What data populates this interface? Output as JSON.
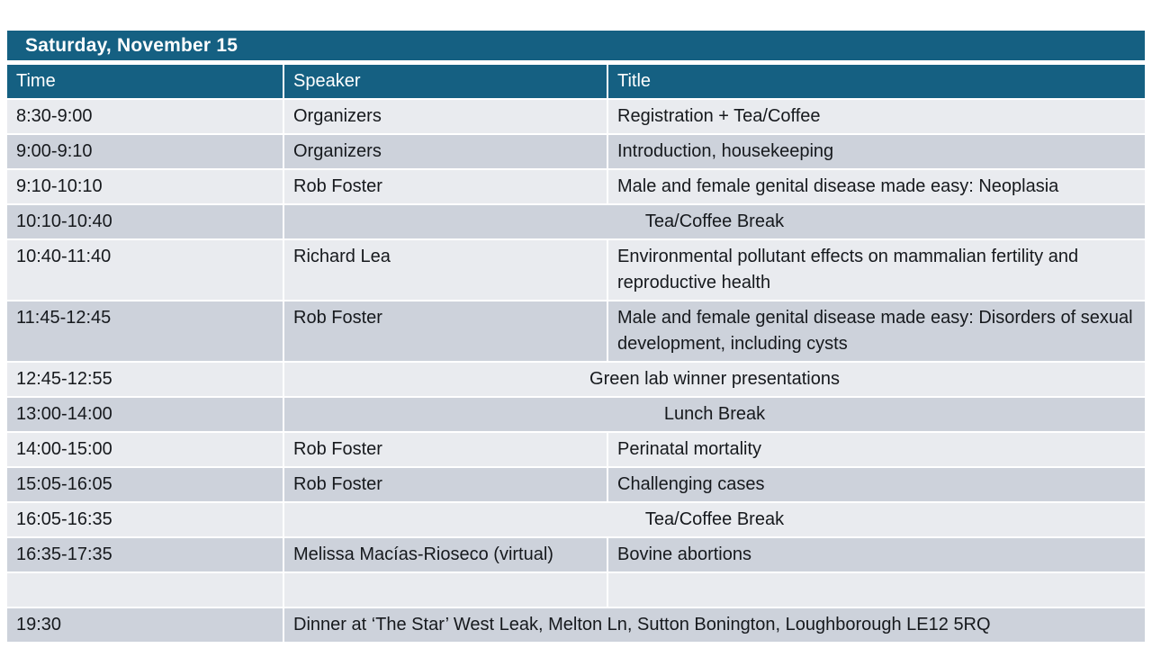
{
  "colors": {
    "accent_teal": "#156082",
    "band_light": "#E9EBEF",
    "band_dark": "#CDD2DB",
    "border_white": "#FFFFFF",
    "header_text": "#FFFFFF",
    "body_text": "#16191D"
  },
  "table": {
    "title": "Saturday, November 15",
    "columns": [
      {
        "label": "Time"
      },
      {
        "label": "Speaker"
      },
      {
        "label": "Title"
      }
    ],
    "rows": [
      {
        "time": "8:30-9:00",
        "speaker": "Organizers",
        "title": "Registration + Tea/Coffee"
      },
      {
        "time": "9:00-9:10",
        "speaker": "Organizers",
        "title": "Introduction, housekeeping"
      },
      {
        "time": "9:10-10:10",
        "speaker": "Rob Foster",
        "title": "Male and female genital disease made easy: Neoplasia"
      },
      {
        "time": "10:10-10:40",
        "merged": "Tea/Coffee Break",
        "merged_align": "center"
      },
      {
        "time": "10:40-11:40",
        "speaker": "Richard Lea",
        "title": "Environmental pollutant effects on mammalian fertility and reproductive health"
      },
      {
        "time": "11:45-12:45",
        "speaker": "Rob Foster",
        "title": "Male and female genital disease made easy: Disorders of sexual development, including cysts"
      },
      {
        "time": "12:45-12:55",
        "merged": "Green lab winner presentations",
        "merged_align": "center"
      },
      {
        "time": "13:00-14:00",
        "merged": "Lunch Break",
        "merged_align": "center"
      },
      {
        "time": "14:00-15:00",
        "speaker": "Rob Foster",
        "title": "Perinatal mortality"
      },
      {
        "time": "15:05-16:05",
        "speaker": "Rob Foster",
        "title": "Challenging cases"
      },
      {
        "time": "16:05-16:35",
        "merged": "Tea/Coffee Break",
        "merged_align": "center"
      },
      {
        "time": "16:35-17:35",
        "speaker": "Melissa Macías-Rioseco (virtual)",
        "title": "Bovine abortions"
      },
      {
        "time": "",
        "speaker": "",
        "title": ""
      },
      {
        "time": "19:30",
        "merged": "Dinner at ‘The Star’ West Leak, Melton Ln, Sutton Bonington, Loughborough LE12 5RQ",
        "merged_align": "left"
      }
    ]
  }
}
